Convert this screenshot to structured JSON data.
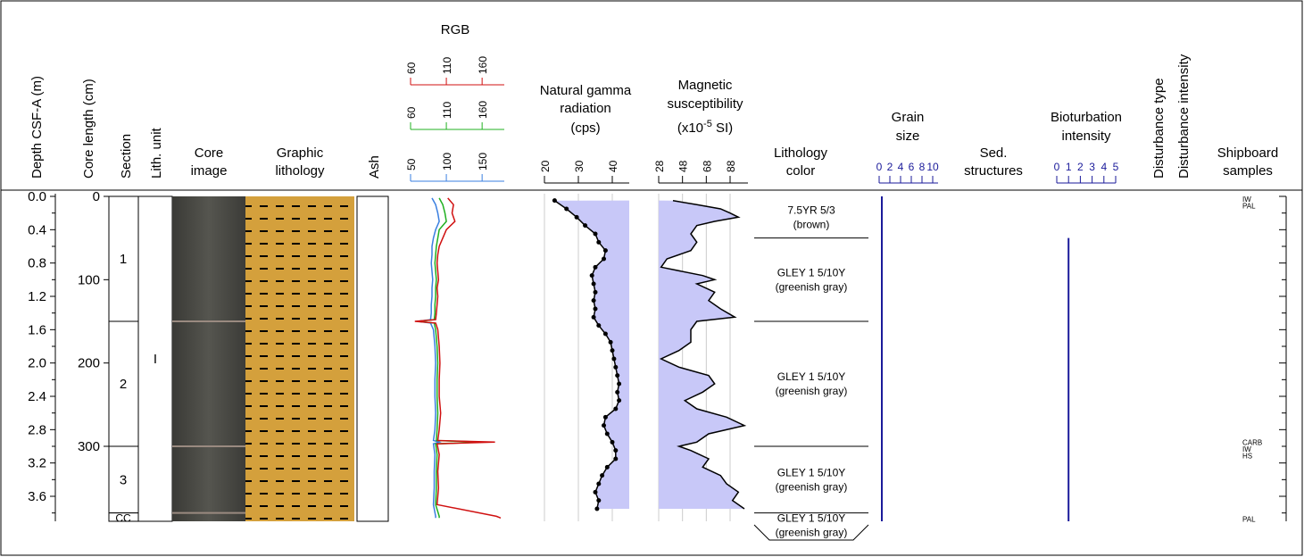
{
  "headers": {
    "depth": "Depth CSF-A (m)",
    "core_length": "Core length (cm)",
    "section": "Section",
    "lith_unit": "Lith. unit",
    "core_image": [
      "Core",
      "image"
    ],
    "graphic_lithology": [
      "Graphic",
      "lithology"
    ],
    "ash": "Ash",
    "rgb": "RGB",
    "ngr": [
      "Natural gamma",
      "radiation",
      "(cps)"
    ],
    "ms": [
      "Magnetic",
      "susceptibility"
    ],
    "ms_unit": [
      "(x10",
      "-5",
      " SI)"
    ],
    "lithology_color": [
      "Lithology",
      "color"
    ],
    "grain_size": [
      "Grain",
      "size"
    ],
    "sed_structures": [
      "Sed.",
      "structures"
    ],
    "bioturbation": [
      "Bioturbation",
      "intensity"
    ],
    "disturbance_type": "Disturbance type",
    "disturbance_intensity": "Disturbance intensity",
    "shipboard_samples": [
      "Shipboard",
      "samples"
    ]
  },
  "depth_axis": {
    "ylim": [
      0,
      3.9
    ],
    "ticks": [
      {
        "value": 0,
        "label": "0.0"
      },
      0.4,
      0.8,
      1.2,
      1.6,
      {
        "value": 2,
        "label": "2.0"
      },
      2.4,
      2.8,
      3.2,
      3.6
    ],
    "minor_ticks": [
      0.2,
      0.6,
      1.0,
      1.4,
      1.8,
      2.2,
      2.6,
      3.0,
      3.4,
      3.8
    ]
  },
  "core_length_axis": {
    "ylim": [
      0,
      390
    ],
    "ticks": [
      0,
      100,
      200,
      300
    ]
  },
  "sections": [
    {
      "name": "1",
      "top": 0,
      "bottom": 1.5
    },
    {
      "name": "2",
      "top": 1.5,
      "bottom": 3.0
    },
    {
      "name": "3",
      "top": 3.0,
      "bottom": 3.8
    },
    {
      "name": "CC",
      "top": 3.8,
      "bottom": 3.9
    }
  ],
  "lith_units": [
    {
      "name": "I",
      "top": 0,
      "bottom": 3.9
    }
  ],
  "core_image": {
    "top": 0,
    "bottom": 3.9
  },
  "graphic_lithology": {
    "top": 0,
    "bottom": 3.9,
    "color": "#d4a03c"
  },
  "ash": {
    "top": 0,
    "bottom": 3.9
  },
  "rgb": {
    "depth": [
      0.02,
      0.1,
      0.2,
      0.3,
      0.4,
      0.5,
      0.6,
      0.7,
      0.8,
      0.9,
      1.0,
      1.1,
      1.2,
      1.3,
      1.4,
      1.48,
      1.5,
      1.52,
      1.6,
      1.8,
      2.0,
      2.2,
      2.4,
      2.6,
      2.8,
      2.93,
      2.95,
      2.97,
      3.1,
      3.3,
      3.5,
      3.7,
      3.84,
      3.86
    ],
    "axes": [
      {
        "color": "#3a7fe0",
        "xlim": [
          50,
          181
        ],
        "ticks": [
          50,
          100,
          150
        ],
        "values": [
          80,
          85,
          88,
          90,
          85,
          82,
          80,
          80,
          79,
          80,
          81,
          80,
          80,
          79,
          79,
          78,
          60,
          78,
          82,
          84,
          85,
          84,
          84,
          85,
          84,
          82,
          90,
          82,
          84,
          83,
          83,
          82,
          85,
          85
        ]
      },
      {
        "color": "#20b020",
        "xlim": [
          60,
          191
        ],
        "ticks": [
          60,
          110,
          160
        ],
        "values": [
          100,
          105,
          108,
          110,
          100,
          98,
          96,
          95,
          94,
          95,
          96,
          95,
          95,
          94,
          94,
          93,
          70,
          93,
          95,
          97,
          98,
          97,
          97,
          98,
          97,
          96,
          160,
          95,
          97,
          96,
          96,
          95,
          100,
          100
        ]
      },
      {
        "color": "#d01010",
        "xlim": [
          60,
          191
        ],
        "ticks": [
          60,
          110,
          160
        ],
        "values": [
          112,
          120,
          118,
          122,
          110,
          105,
          100,
          98,
          97,
          98,
          99,
          97,
          98,
          97,
          96,
          95,
          66,
          95,
          98,
          100,
          101,
          100,
          100,
          102,
          100,
          98,
          178,
          97,
          100,
          98,
          99,
          97,
          180,
          186
        ]
      }
    ]
  },
  "ngr": {
    "xlim": [
      20,
      45
    ],
    "ticks": [
      20,
      30,
      40
    ],
    "fill": "right",
    "fill_color": "#c8c8f8",
    "grid": true,
    "depth": [
      0.05,
      0.15,
      0.25,
      0.35,
      0.45,
      0.55,
      0.65,
      0.75,
      0.85,
      0.95,
      1.05,
      1.15,
      1.25,
      1.35,
      1.45,
      1.55,
      1.65,
      1.75,
      1.85,
      1.95,
      2.05,
      2.15,
      2.25,
      2.35,
      2.45,
      2.55,
      2.65,
      2.75,
      2.85,
      2.95,
      3.05,
      3.15,
      3.25,
      3.35,
      3.45,
      3.55,
      3.65,
      3.75
    ],
    "values": [
      23,
      26.5,
      29.5,
      32,
      35,
      36,
      38,
      37.5,
      35,
      34,
      34.5,
      35,
      34.5,
      35,
      34.5,
      36,
      38,
      39.5,
      40,
      40.5,
      41,
      41.5,
      42,
      41.5,
      42,
      41,
      38,
      37.5,
      38.5,
      40,
      41,
      41,
      38.5,
      37,
      36,
      35,
      36,
      35.5
    ]
  },
  "ms": {
    "xlim": [
      28,
      103
    ],
    "ticks": [
      28,
      48,
      68,
      88
    ],
    "fill": "left",
    "fill_color": "#c8c8f8",
    "grid": true,
    "depth": [
      0.05,
      0.1,
      0.15,
      0.2,
      0.25,
      0.3,
      0.35,
      0.45,
      0.55,
      0.65,
      0.75,
      0.85,
      0.95,
      1.0,
      1.05,
      1.15,
      1.25,
      1.35,
      1.45,
      1.5,
      1.6,
      1.75,
      1.85,
      1.95,
      2.05,
      2.15,
      2.25,
      2.35,
      2.45,
      2.55,
      2.65,
      2.75,
      2.85,
      2.95,
      3.0,
      3.05,
      3.15,
      3.25,
      3.35,
      3.45,
      3.55,
      3.65,
      3.75
    ],
    "values": [
      40,
      60,
      80,
      88,
      95,
      75,
      60,
      55,
      60,
      55,
      35,
      30,
      65,
      75,
      60,
      75,
      70,
      80,
      92,
      60,
      55,
      55,
      45,
      30,
      45,
      70,
      75,
      65,
      50,
      60,
      85,
      100,
      70,
      60,
      45,
      55,
      70,
      65,
      80,
      85,
      95,
      90,
      100
    ]
  },
  "lithology_color": [
    {
      "label": [
        "7.5YR 5/3",
        "(brown)"
      ],
      "top": 0,
      "bottom": 0.5
    },
    {
      "label": [
        "GLEY 1 5/10Y",
        "(greenish gray)"
      ],
      "top": 0.5,
      "bottom": 1.5
    },
    {
      "label": [
        "GLEY 1 5/10Y",
        "(greenish gray)"
      ],
      "top": 1.5,
      "bottom": 3.0
    },
    {
      "label": [
        "GLEY 1 5/10Y",
        "(greenish gray)"
      ],
      "top": 3.0,
      "bottom": 3.8
    },
    {
      "label": [
        "GLEY 1 5/10Y",
        "(greenish gray)"
      ],
      "top": 3.8,
      "bottom": 3.9
    }
  ],
  "grain_size": {
    "xlim": [
      0,
      11
    ],
    "ticks": [
      0,
      2,
      4,
      6,
      8,
      10
    ],
    "color": "#1a1a9a",
    "intervals": [
      {
        "value": 0.5,
        "top": 0,
        "bottom": 3.9
      }
    ]
  },
  "bioturbation": {
    "xlim": [
      0,
      5
    ],
    "ticks": [
      0,
      1,
      2,
      3,
      4,
      5
    ],
    "color": "#1a1a9a",
    "intervals": [
      {
        "value": 1,
        "top": 0.5,
        "bottom": 3.9
      }
    ]
  },
  "samples": [
    {
      "label": "IW",
      "depth": 0.0
    },
    {
      "label": "PAL",
      "depth": 0.08
    },
    {
      "label": "CARB",
      "depth": 2.92
    },
    {
      "label": "IW",
      "depth": 3.0
    },
    {
      "label": "HS",
      "depth": 3.08
    },
    {
      "label": "PAL",
      "depth": 3.84
    }
  ]
}
